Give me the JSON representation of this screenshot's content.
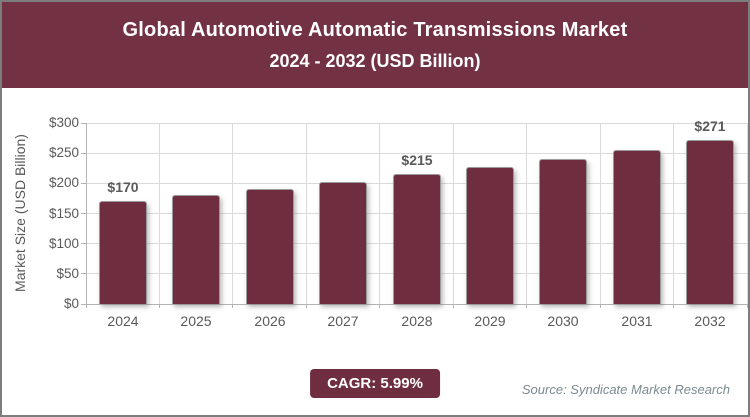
{
  "header": {
    "title_line1": "Global Automotive Automatic Transmissions Market",
    "title_line2": "2024 - 2032 (USD Billion)"
  },
  "chart_data": {
    "type": "bar",
    "title": "Global Automotive Automatic Transmissions Market 2024 - 2032 (USD Billion)",
    "categories": [
      "2024",
      "2025",
      "2026",
      "2027",
      "2028",
      "2029",
      "2030",
      "2031",
      "2032"
    ],
    "values": [
      170,
      180,
      191,
      202,
      215,
      227,
      241,
      255,
      271
    ],
    "bar_labels": [
      "$170",
      "",
      "",
      "",
      "$215",
      "",
      "",
      "",
      "$271"
    ],
    "xlabel": "",
    "ylabel": "Market Size (USD Billion)",
    "ylim": [
      0,
      300
    ],
    "ytick_step": 50,
    "ytick_labels": [
      "$0",
      "$50",
      "$100",
      "$150",
      "$200",
      "$250",
      "$300"
    ],
    "grid": true,
    "legend": "none"
  },
  "footer": {
    "cagr_label": "CAGR: 5.99%",
    "source": "Source: Syndicate Market Research"
  },
  "colors": {
    "banner": "#733144",
    "bar": "#6F2E40",
    "axis_text": "#595959",
    "gridline": "#DADADA",
    "source_text": "#7C8A90"
  }
}
